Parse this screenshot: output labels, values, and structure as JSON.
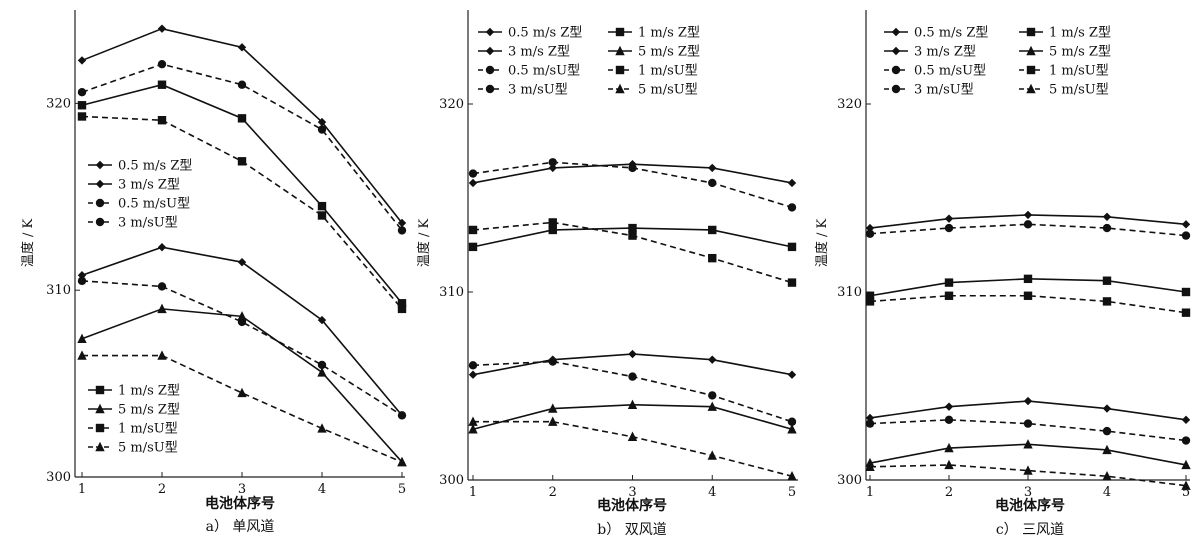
{
  "chart_data": [
    {
      "type": "line",
      "caption": "a） 单风道",
      "xlabel": "电池体序号",
      "ylabel": "温度 / K",
      "x": [
        1,
        2,
        3,
        4,
        5
      ],
      "xlim": [
        1,
        5
      ],
      "ylim": [
        300,
        325
      ],
      "yticks": [
        300,
        310,
        320
      ],
      "grid": false,
      "legends": [
        {
          "placement": "mid-left",
          "entries": [
            "0.5 m/s Z型",
            "3 m/s Z型",
            "0.5 m/sU型",
            "3 m/sU型"
          ]
        },
        {
          "placement": "bottom-left",
          "entries": [
            "1 m/s Z型",
            "5 m/s Z型",
            "1 m/sU型",
            "5 m/sU型"
          ]
        }
      ],
      "series": [
        {
          "name": "0.5 m/s Z型",
          "marker": "diamond",
          "dash": false,
          "values": [
            322.3,
            324.0,
            323.0,
            319.0,
            313.6
          ]
        },
        {
          "name": "0.5 m/sU型",
          "marker": "circle",
          "dash": true,
          "values": [
            320.6,
            322.1,
            321.0,
            318.6,
            313.2
          ]
        },
        {
          "name": "1 m/s Z型",
          "marker": "square",
          "dash": false,
          "values": [
            319.9,
            321.0,
            319.2,
            314.5,
            309.3
          ]
        },
        {
          "name": "1 m/sU型",
          "marker": "square",
          "dash": true,
          "values": [
            319.3,
            319.1,
            316.9,
            314.0,
            309.0
          ]
        },
        {
          "name": "3 m/s Z型",
          "marker": "diamond",
          "dash": false,
          "values": [
            310.8,
            312.3,
            311.5,
            308.4,
            303.3
          ]
        },
        {
          "name": "3 m/sU型",
          "marker": "circle",
          "dash": true,
          "values": [
            310.5,
            310.2,
            308.3,
            306.0,
            303.3
          ]
        },
        {
          "name": "5 m/s Z型",
          "marker": "triangle",
          "dash": false,
          "values": [
            307.4,
            309.0,
            308.6,
            305.6,
            300.8
          ]
        },
        {
          "name": "5 m/sU型",
          "marker": "triangle",
          "dash": true,
          "values": [
            306.5,
            306.5,
            304.5,
            302.6,
            300.8
          ]
        }
      ]
    },
    {
      "type": "line",
      "caption": "b） 双风道",
      "xlabel": "电池体序号",
      "ylabel": "温度 / K",
      "x": [
        1,
        2,
        3,
        4,
        5
      ],
      "xlim": [
        1,
        5
      ],
      "ylim": [
        300,
        325
      ],
      "yticks": [
        300,
        310,
        320
      ],
      "grid": false,
      "legends": [
        {
          "placement": "top",
          "columns": 2,
          "entries": [
            "0.5 m/s Z型",
            "1 m/s Z型",
            "3 m/s Z型",
            "5 m/s Z型",
            "0.5 m/sU型",
            "1 m/sU型",
            "3 m/sU型",
            "5 m/sU型"
          ]
        }
      ],
      "series": [
        {
          "name": "0.5 m/s Z型",
          "marker": "diamond",
          "dash": false,
          "values": [
            315.8,
            316.6,
            316.8,
            316.6,
            315.8
          ]
        },
        {
          "name": "0.5 m/sU型",
          "marker": "circle",
          "dash": true,
          "values": [
            316.3,
            316.9,
            316.6,
            315.8,
            314.5
          ]
        },
        {
          "name": "1 m/s Z型",
          "marker": "square",
          "dash": false,
          "values": [
            312.4,
            313.3,
            313.4,
            313.3,
            312.4
          ]
        },
        {
          "name": "1 m/sU型",
          "marker": "square",
          "dash": true,
          "values": [
            313.3,
            313.7,
            313.0,
            311.8,
            310.5
          ]
        },
        {
          "name": "3 m/s Z型",
          "marker": "diamond",
          "dash": false,
          "values": [
            305.6,
            306.4,
            306.7,
            306.4,
            305.6
          ]
        },
        {
          "name": "3 m/sU型",
          "marker": "circle",
          "dash": true,
          "values": [
            306.1,
            306.3,
            305.5,
            304.5,
            303.1
          ]
        },
        {
          "name": "5 m/s Z型",
          "marker": "triangle",
          "dash": false,
          "values": [
            302.7,
            303.8,
            304.0,
            303.9,
            302.7
          ]
        },
        {
          "name": "5 m/sU型",
          "marker": "triangle",
          "dash": true,
          "values": [
            303.1,
            303.1,
            302.3,
            301.3,
            300.2
          ]
        }
      ]
    },
    {
      "type": "line",
      "caption": "c） 三风道",
      "xlabel": "电池体序号",
      "ylabel": "温度 / K",
      "x": [
        1,
        2,
        3,
        4,
        5
      ],
      "xlim": [
        1,
        5
      ],
      "ylim": [
        300,
        325
      ],
      "yticks": [
        300,
        310,
        320
      ],
      "grid": false,
      "legends": [
        {
          "placement": "top",
          "columns": 2,
          "entries": [
            "0.5 m/s Z型",
            "1 m/s Z型",
            "3 m/s Z型",
            "5 m/s Z型",
            "0.5 m/sU型",
            "1 m/sU型",
            "3 m/sU型",
            "5 m/sU型"
          ]
        }
      ],
      "series": [
        {
          "name": "0.5 m/s Z型",
          "marker": "diamond",
          "dash": false,
          "values": [
            313.4,
            313.9,
            314.1,
            314.0,
            313.6
          ]
        },
        {
          "name": "0.5 m/sU型",
          "marker": "circle",
          "dash": true,
          "values": [
            313.1,
            313.4,
            313.6,
            313.4,
            313.0
          ]
        },
        {
          "name": "1 m/s Z型",
          "marker": "square",
          "dash": false,
          "values": [
            309.8,
            310.5,
            310.7,
            310.6,
            310.0
          ]
        },
        {
          "name": "1 m/sU型",
          "marker": "square",
          "dash": true,
          "values": [
            309.5,
            309.8,
            309.8,
            309.5,
            308.9
          ]
        },
        {
          "name": "3 m/s Z型",
          "marker": "diamond",
          "dash": false,
          "values": [
            303.3,
            303.9,
            304.2,
            303.8,
            303.2
          ]
        },
        {
          "name": "3 m/sU型",
          "marker": "circle",
          "dash": true,
          "values": [
            303.0,
            303.2,
            303.0,
            302.6,
            302.1
          ]
        },
        {
          "name": "5 m/s Z型",
          "marker": "triangle",
          "dash": false,
          "values": [
            300.9,
            301.7,
            301.9,
            301.6,
            300.8
          ]
        },
        {
          "name": "5 m/sU型",
          "marker": "triangle",
          "dash": true,
          "values": [
            300.7,
            300.8,
            300.5,
            300.2,
            299.7
          ]
        }
      ]
    }
  ]
}
